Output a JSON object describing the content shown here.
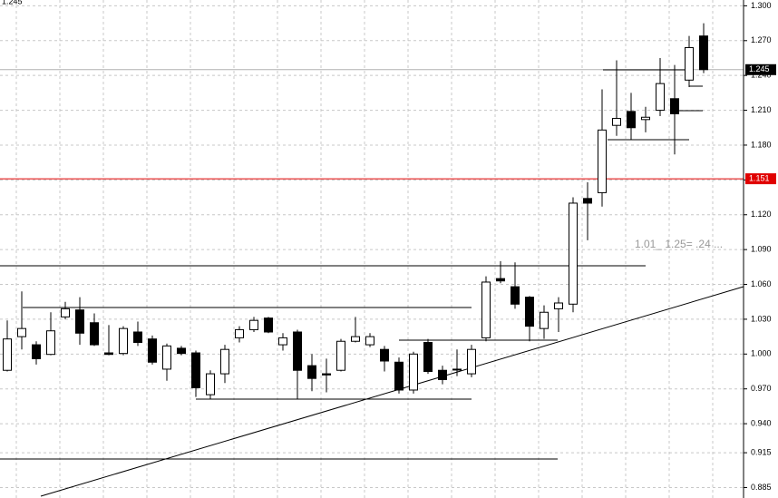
{
  "chart_data": {
    "type": "candlestick",
    "open": [
      0.986,
      1.015,
      1.008,
      0.9997,
      1.032,
      1.038,
      1.027,
      1.001,
      1.0005,
      1.019,
      1.013,
      0.987,
      1.005,
      1.001,
      0.965,
      0.983,
      1.014,
      1.021,
      1.031,
      1.008,
      1.019,
      0.99,
      0.983,
      0.986,
      1.011,
      1.008,
      1.004,
      0.993,
      0.969,
      1.01,
      0.986,
      0.987,
      0.983,
      1.014,
      1.065,
      1.058,
      1.049,
      1.022,
      1.039,
      1.043,
      1.134,
      1.139,
      1.197,
      1.209,
      1.202,
      1.21,
      1.22,
      1.236,
      1.274
    ],
    "high": [
      1.029,
      1.054,
      1.011,
      1.036,
      1.045,
      1.049,
      1.035,
      1.025,
      1.024,
      1.028,
      1.016,
      1.009,
      1.007,
      1.003,
      0.986,
      1.008,
      1.024,
      1.032,
      1.032,
      1.018,
      1.021,
      1.0,
      0.996,
      1.013,
      1.032,
      1.018,
      1.007,
      0.997,
      1.002,
      1.013,
      0.99,
      1.004,
      1.008,
      1.067,
      1.08,
      1.079,
      1.05,
      1.042,
      1.049,
      1.135,
      1.148,
      1.228,
      1.253,
      1.225,
      1.213,
      1.255,
      1.249,
      1.274,
      1.285
    ],
    "low": [
      0.985,
      1.004,
      0.991,
      0.999,
      1.03,
      1.008,
      1.007,
      0.999,
      0.999,
      1.007,
      0.991,
      0.977,
      0.999,
      0.963,
      0.961,
      0.975,
      1.01,
      1.019,
      1.018,
      1.003,
      0.961,
      0.968,
      0.967,
      0.985,
      1.01,
      1.006,
      0.985,
      0.966,
      0.966,
      0.983,
      0.974,
      0.981,
      0.98,
      1.011,
      1.061,
      1.039,
      1.011,
      1.013,
      1.019,
      1.036,
      1.098,
      1.127,
      1.188,
      1.185,
      1.191,
      1.205,
      1.172,
      1.23,
      1.242
    ],
    "close": [
      1.013,
      1.022,
      0.996,
      1.02,
      1.039,
      1.018,
      1.008,
      0.9997,
      1.022,
      1.01,
      0.993,
      1.007,
      1.0005,
      0.971,
      0.983,
      1.004,
      1.021,
      1.029,
      1.019,
      1.014,
      0.986,
      0.979,
      0.982,
      1.011,
      1.015,
      1.015,
      0.994,
      0.969,
      1.0,
      0.985,
      0.978,
      0.987,
      1.004,
      1.062,
      1.063,
      1.043,
      1.024,
      1.036,
      1.044,
      1.13,
      1.13,
      1.193,
      1.203,
      1.195,
      1.204,
      1.233,
      1.207,
      1.264,
      1.245
    ],
    "up_color": "#ffffff",
    "down_color": "#000000",
    "ylim": [
      0.876,
      1.305
    ],
    "yticks": [
      {
        "value": 1.3,
        "label": "1.300"
      },
      {
        "value": 1.27,
        "label": "1.270"
      },
      {
        "value": 1.24,
        "label": "1.240"
      },
      {
        "value": 1.21,
        "label": "1.210"
      },
      {
        "value": 1.18,
        "label": "1.180"
      },
      {
        "value": 1.15,
        "label": "1.150"
      },
      {
        "value": 1.12,
        "label": "1.120"
      },
      {
        "value": 1.09,
        "label": "1.090"
      },
      {
        "value": 1.06,
        "label": "1.060"
      },
      {
        "value": 1.03,
        "label": "1.030"
      },
      {
        "value": 1.0,
        "label": "1.000"
      },
      {
        "value": 0.97,
        "label": "0.970"
      },
      {
        "value": 0.94,
        "label": "0.940"
      },
      {
        "value": 0.915,
        "label": "0.915"
      },
      {
        "value": 0.885,
        "label": "0.885"
      }
    ],
    "grid": true,
    "last_price": {
      "value": 1.245,
      "label": "1.245"
    },
    "hline": {
      "value": 1.151,
      "label": "1.151",
      "color": "#e00000"
    },
    "annotation": "1.01_ 1.25= .24 ..."
  }
}
